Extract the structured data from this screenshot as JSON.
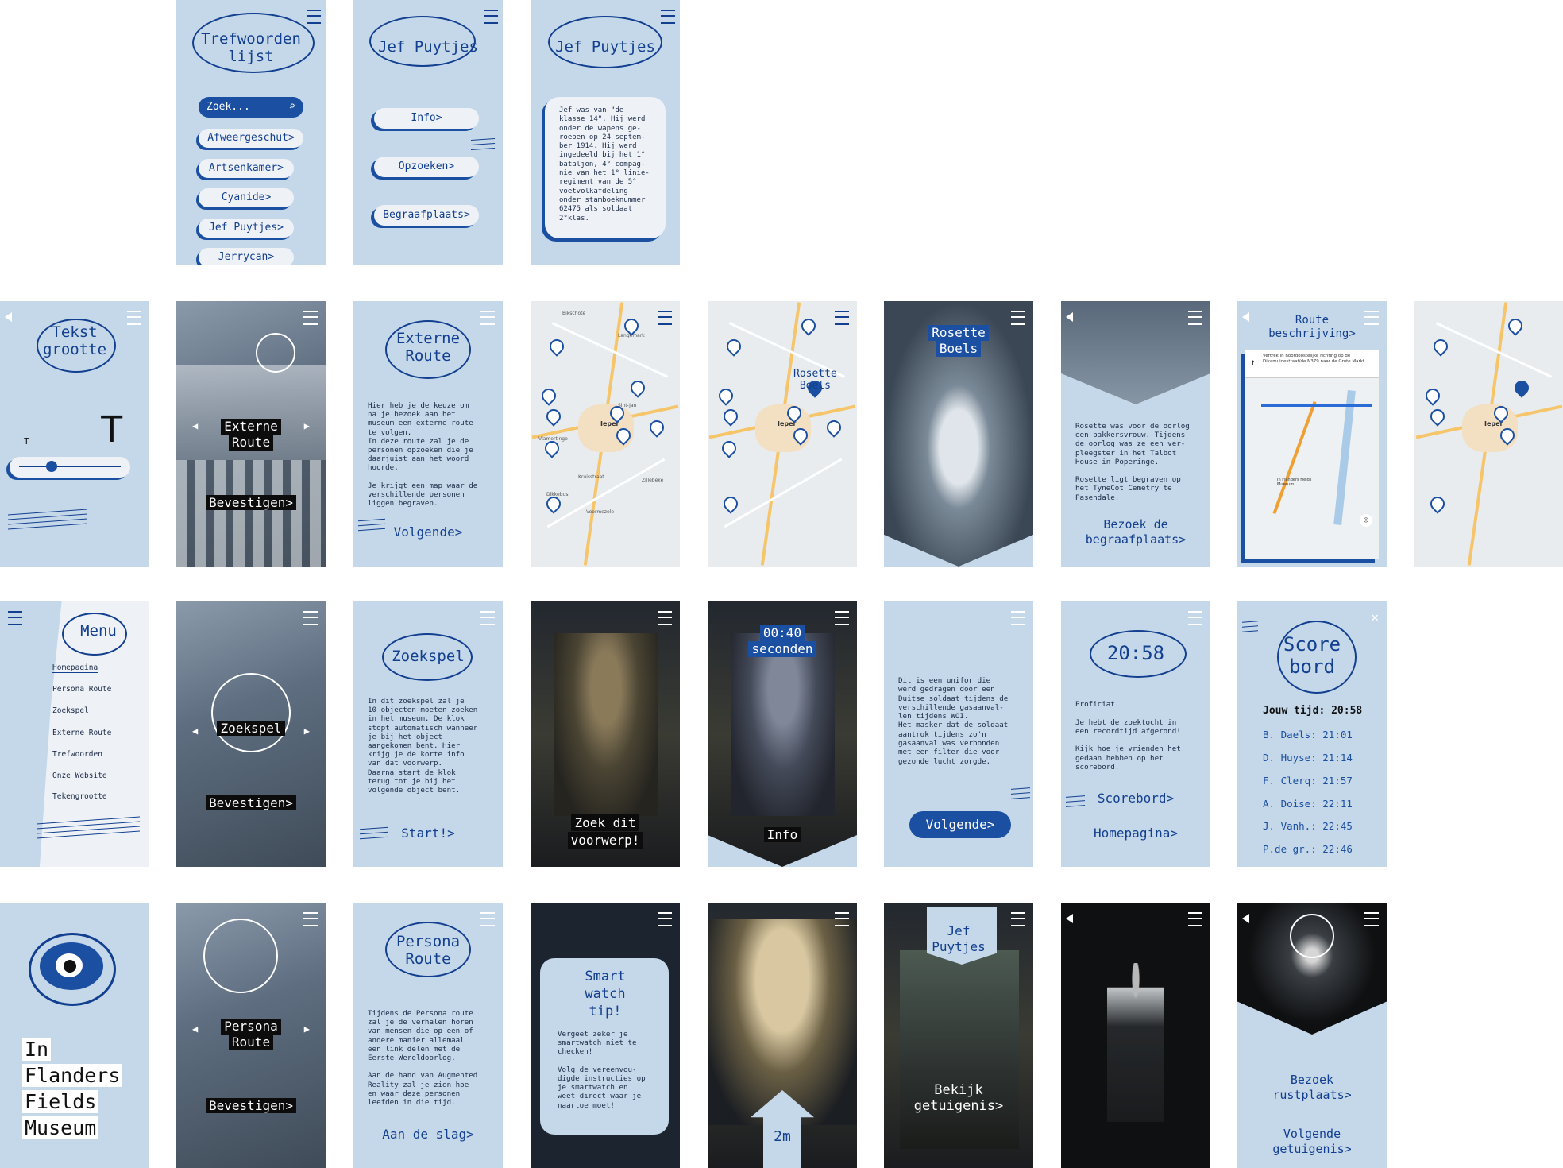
{
  "row1": {
    "trefwoorden": {
      "title_l1": "Trefwoorden",
      "title_l2": "lijst",
      "search_placeholder": "Zoek...",
      "items": [
        "Afweergeschut>",
        "Artsenkamer>",
        "Cyanide>",
        "Jef Puytjes>",
        "Jerrycan>"
      ]
    },
    "jef_menu": {
      "title": "Jef Puytjes",
      "buttons": [
        "Info>",
        "Opzoeken>",
        "Begraafplaats>"
      ]
    },
    "jef_info": {
      "title": "Jef Puytjes",
      "text": "Jef was van \"de\nklasse 14\". Hij werd\nonder de wapens ge-\nroepen op 24 septem-\nber 1914. Hij werd\ningedeeld bij het 1°\nbataljon, 4° compag-\nnie van het 1° linie-\nregiment van de 5°\nvoetvolkafdeling\nonder stamboeknummer\n62475 als soldaat\n2°klas."
    }
  },
  "row2": {
    "tekstgrootte": {
      "title_l1": "Tekst",
      "title_l2": "grootte",
      "small_t": "T",
      "big_t": "T",
      "slider_value": 0.3
    },
    "externe_route_photo": {
      "label_l1": "Externe",
      "label_l2": "Route",
      "confirm": "Bevestigen>"
    },
    "externe_route_info": {
      "title_l1": "Externe",
      "title_l2": "Route",
      "text": "Hier heb je de keuze om\nna je bezoek aan het\nmuseum een externe route\nte volgen.\nIn deze route zal je de\npersonen opzoeken die je\ndaarjuist aan het woord\nhoorde.\n\nJe krijgt een map waar de\nverschillende personen\nliggen begraven.",
      "next": "Volgende>"
    },
    "map1": {
      "labels": [
        "Bikschote",
        "Langemark",
        "Ieper",
        "Zillebeke",
        "Voormezele",
        "Vlamertinge",
        "Sint-Jan",
        "Kruisstraat",
        "Dikkebus"
      ]
    },
    "map2": {
      "popup_l1": "Rosette",
      "popup_l2": "Boels"
    },
    "rosette_photo": {
      "name_l1": "Rosette",
      "name_l2": "Boels"
    },
    "rosette_info": {
      "text": "Rosette was voor de oorlog\neen bakkersvrouw. Tijdens\nde oorlog was ze een ver-\npleegster in het Talbot\nHouse in Poperinge.\n\nRosette ligt begraven op\nhet TyneCot Cemetry te\nPasendale.",
      "cta_l1": "Bezoek de",
      "cta_l2": "begraafplaats>"
    },
    "route": {
      "title_l1": "Route",
      "title_l2": "beschrijving>",
      "direction": "Vertrek in noordoostelijke richting op de Dikamuidestraat/de N379 naar de Grote Markt",
      "poi": "In Flanders Fields Museum"
    }
  },
  "row3": {
    "menu": {
      "title": "Menu",
      "items": [
        "Homepagina",
        "Persona Route",
        "Zoekspel",
        "Externe Route",
        "Trefwoorden",
        "Onze Website",
        "Tekengrootte"
      ]
    },
    "zoekspel_photo": {
      "label": "Zoekspel",
      "confirm": "Bevestigen>"
    },
    "zoekspel_info": {
      "title": "Zoekspel",
      "text": "In dit zoekspel zal je\n10 objecten moeten zoeken\nin het museum. De klok\nstopt automatisch wanneer\nje bij het object\naangekomen bent. Hier\nkrijg je de korte info\nvan dat voorwerp.\nDaarna start de klok\nterug tot je bij het\nvolgende object bent.",
      "start": "Start!>"
    },
    "zoek_object": {
      "label_l1": "Zoek dit",
      "label_l2": "voorwerp!"
    },
    "timer": {
      "time": "00:40",
      "unit": "seconden",
      "info": "Info"
    },
    "object_info": {
      "text": "Dit is een unifor die\nwerd gedragen door een\nDuitse soldaat tijdens de\nverschillende gasaanval-\nlen tijdens WOI.\nHet masker dat de soldaat\naantrok tijdens zo'n\ngasaanval was verbonden\nmet een filter die voor\ngezonde lucht zorgde.",
      "next": "Volgende>"
    },
    "proficiat": {
      "time": "20:58",
      "text": "Proficiat!\n\nJe hebt de zoektocht in\neen recordtijd afgerond!\n\nKijk hoe je vrienden het\ngedaan hebben op het\nscorebord.",
      "scoreboard": "Scorebord>",
      "home": "Homepagina>"
    },
    "scorebord": {
      "title_l1": "Score",
      "title_l2": "bord",
      "your_time": "Jouw tijd: 20:58",
      "rows": [
        "B. Daels: 21:01",
        "D. Huyse: 21:14",
        "F. Clerq: 21:57",
        "A. Doise: 22:11",
        "J. Vanh.: 22:45",
        "P.de gr.: 22:46"
      ]
    }
  },
  "row4": {
    "home": {
      "l1": "In",
      "l2": "Flanders",
      "l3": "Fields",
      "l4": "Museum"
    },
    "persona_photo": {
      "label_l1": "Persona",
      "label_l2": "Route",
      "confirm": "Bevestigen>"
    },
    "persona_info": {
      "title_l1": "Persona",
      "title_l2": "Route",
      "text": "Tijdens de Persona route\nzal je de verhalen horen\nvan mensen die op een of\nandere manier allemaal\neen link delen met de\nEerste Wereldoorlog.\n\nAan de hand van Augmented\nReality zal je zien hoe\nen waar deze personen\nleefden in die tijd.",
      "cta": "Aan de slag>"
    },
    "smartwatch": {
      "title_l1": "Smart",
      "title_l2": "watch",
      "title_l3": "tip!",
      "text": "Vergeet zeker je\nsmartwatch niet te\nchecken!\n\nVolg de vereenvou-\ndigde instructies op\nje smartwatch en\nweet direct waar je\nnaartoe moet!"
    },
    "distance": {
      "value": "2m"
    },
    "jef_case": {
      "title_l1": "Jef",
      "title_l2": "Puytjes",
      "cta_l1": "Bekijk",
      "cta_l2": "getuigenis>"
    },
    "jef_final": {
      "cta_l1": "Bezoek",
      "cta_l2": "rustplaats>",
      "next_l1": "Volgende",
      "next_l2": "getuigenis>"
    }
  }
}
